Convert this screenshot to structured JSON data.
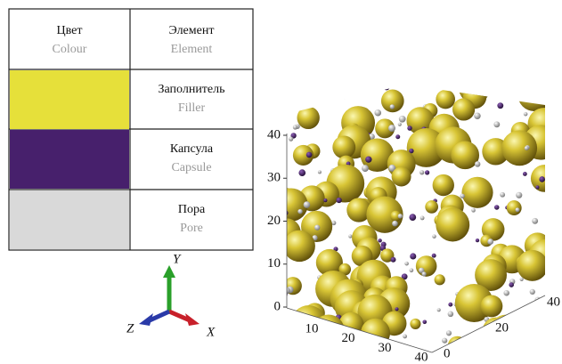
{
  "legend_table": {
    "header": {
      "colour": [
        "Цвет",
        "Colour"
      ],
      "element": [
        "Элемент",
        "Element"
      ]
    },
    "rows": [
      {
        "color": "#e6e03a",
        "element": [
          "Заполнитель",
          "Filler"
        ]
      },
      {
        "color": "#47206c",
        "element": [
          "Капсула",
          "Capsule"
        ]
      },
      {
        "color": "#d9d9d9",
        "element": [
          "Пора",
          "Pore"
        ]
      }
    ]
  },
  "axes_triad": {
    "y": "Y",
    "z": "Z",
    "x": "X"
  },
  "model_view": {
    "z_ticks": [
      0,
      10,
      20,
      30,
      40
    ],
    "x_ticks": [
      10,
      20,
      30,
      40
    ],
    "y_ticks": [
      0,
      20,
      40
    ]
  }
}
